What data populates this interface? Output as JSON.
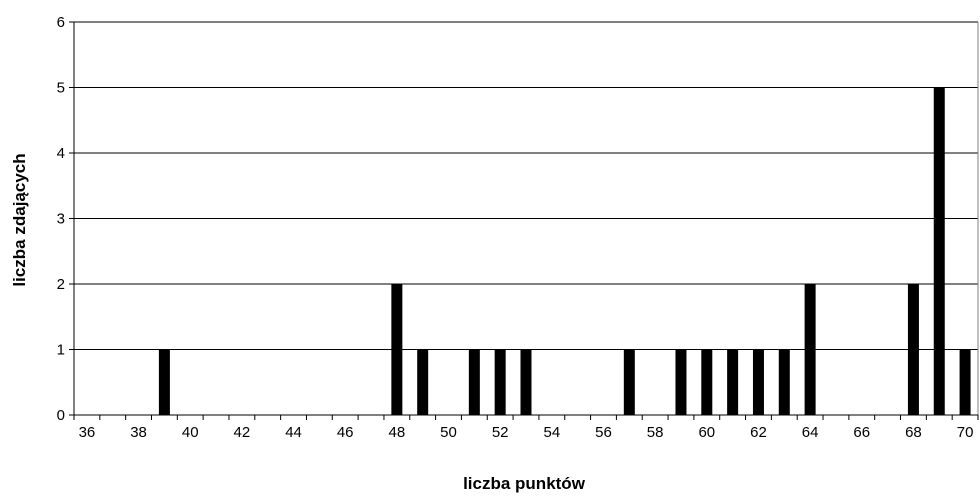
{
  "chart_data": {
    "type": "bar",
    "title": "",
    "xlabel": "liczba punktów",
    "ylabel": "liczba zdających",
    "x": [
      36,
      37,
      38,
      39,
      40,
      41,
      42,
      43,
      44,
      45,
      46,
      47,
      48,
      49,
      50,
      51,
      52,
      53,
      54,
      55,
      56,
      57,
      58,
      59,
      60,
      61,
      62,
      63,
      64,
      65,
      66,
      67,
      68,
      69,
      70
    ],
    "values": [
      0,
      0,
      0,
      1,
      0,
      0,
      0,
      0,
      0,
      0,
      0,
      0,
      2,
      1,
      0,
      1,
      1,
      1,
      0,
      0,
      0,
      1,
      0,
      1,
      1,
      1,
      1,
      1,
      2,
      0,
      0,
      0,
      2,
      5,
      1
    ],
    "x_tick_labels": [
      "36",
      "38",
      "40",
      "42",
      "44",
      "46",
      "48",
      "50",
      "52",
      "54",
      "56",
      "58",
      "60",
      "62",
      "64",
      "66",
      "68",
      "70"
    ],
    "y_tick_labels": [
      "0",
      "1",
      "2",
      "3",
      "4",
      "5",
      "6"
    ],
    "ylim": [
      0,
      6
    ],
    "grid": "horizontal",
    "legend": "none",
    "bar_color": "#000000"
  }
}
